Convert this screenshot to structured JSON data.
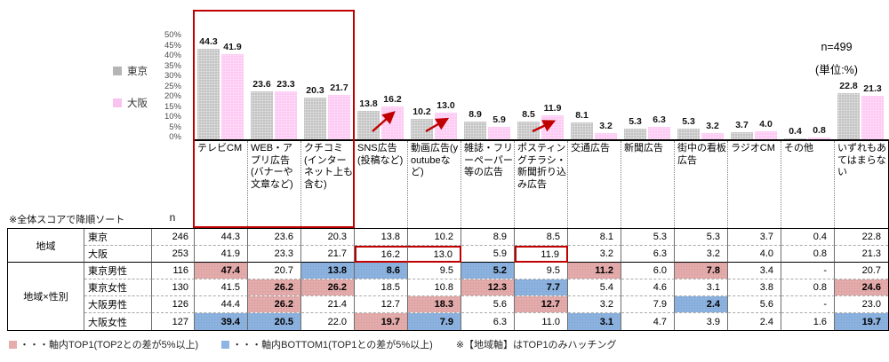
{
  "chart_data": {
    "type": "bar",
    "title": "",
    "n_label": "n=499",
    "unit_label": "(単位:%)",
    "sort_note": "※全体スコアで降順ソート",
    "ylim": [
      0,
      50
    ],
    "y_ticks": [
      "50%",
      "45%",
      "40%",
      "35%",
      "30%",
      "25%",
      "20%",
      "15%",
      "10%",
      "5%",
      "0%"
    ],
    "grid": false,
    "legend_position": "left",
    "legend": [
      {
        "name": "東京",
        "color": "#b5b5b5"
      },
      {
        "name": "大阪",
        "color": "#fac2ee"
      }
    ],
    "categories": [
      "テレビCM",
      "WEB・アプリ広告(バナーや文章など)",
      "クチコミ(インターネット上も含む)",
      "SNS広告(投稿など)",
      "動画広告(youtubeなど)",
      "雑誌・フリーペーパー等の広告",
      "ポスティングチラシ・新聞折り込み広告",
      "交通広告",
      "新聞広告",
      "街中の看板広告",
      "ラジオCM",
      "その他",
      "いずれもあてはまらない"
    ],
    "series": [
      {
        "name": "東京",
        "values": [
          44.3,
          23.6,
          20.3,
          13.8,
          10.2,
          8.9,
          8.5,
          8.1,
          5.3,
          5.3,
          3.7,
          0.4,
          22.8
        ]
      },
      {
        "name": "大阪",
        "values": [
          41.9,
          23.3,
          21.7,
          16.2,
          13.0,
          5.9,
          11.9,
          3.2,
          6.3,
          3.2,
          4.0,
          0.8,
          21.3
        ]
      }
    ],
    "increase_arrow_categories": [
      3,
      4,
      6
    ],
    "red_frame_categories": [
      0,
      1,
      2
    ],
    "bar_colors": {
      "tokyo": "#c3c3c3",
      "osaka": "#fdc9f4"
    },
    "arrow_color": "#c00000"
  },
  "table": {
    "n_header": "n",
    "groups": [
      {
        "label": "地域",
        "rows": [
          {
            "label": "東京",
            "n": "246",
            "values": [
              "44.3",
              "23.6",
              "20.3",
              "13.8",
              "10.2",
              "8.9",
              "8.5",
              "8.1",
              "5.3",
              "5.3",
              "3.7",
              "0.4",
              "22.8"
            ],
            "marks": [
              "",
              "",
              "",
              "",
              "",
              "",
              "",
              "",
              "",
              "",
              "",
              "",
              ""
            ],
            "red_segments": []
          },
          {
            "label": "大阪",
            "n": "253",
            "values": [
              "41.9",
              "23.3",
              "21.7",
              "16.2",
              "13.0",
              "5.9",
              "11.9",
              "3.2",
              "6.3",
              "3.2",
              "4.0",
              "0.8",
              "21.3"
            ],
            "marks": [
              "",
              "",
              "",
              "",
              "",
              "",
              "",
              "",
              "",
              "",
              "",
              "",
              ""
            ],
            "red_segments": [
              [
                3,
                4
              ],
              [
                6,
                6
              ]
            ]
          }
        ]
      },
      {
        "label": "地域×性別",
        "rows": [
          {
            "label": "東京男性",
            "n": "116",
            "values": [
              "47.4",
              "20.7",
              "13.8",
              "8.6",
              "9.5",
              "5.2",
              "9.5",
              "11.2",
              "6.0",
              "7.8",
              "3.4",
              "-",
              "20.7"
            ],
            "marks": [
              "p",
              "",
              "b",
              "b",
              "",
              "b",
              "",
              "p",
              "",
              "p",
              "",
              "",
              ""
            ],
            "red_segments": []
          },
          {
            "label": "東京女性",
            "n": "130",
            "values": [
              "41.5",
              "26.2",
              "26.2",
              "18.5",
              "10.8",
              "12.3",
              "7.7",
              "5.4",
              "4.6",
              "3.1",
              "3.8",
              "0.8",
              "24.6"
            ],
            "marks": [
              "",
              "p",
              "p",
              "",
              "",
              "p",
              "b",
              "",
              "",
              "",
              "",
              "",
              "p"
            ],
            "red_segments": []
          },
          {
            "label": "大阪男性",
            "n": "126",
            "values": [
              "44.4",
              "26.2",
              "21.4",
              "12.7",
              "18.3",
              "5.6",
              "12.7",
              "3.2",
              "7.9",
              "2.4",
              "5.6",
              "-",
              "23.0"
            ],
            "marks": [
              "",
              "p",
              "",
              "",
              "p",
              "",
              "p",
              "",
              "",
              "b",
              "",
              "",
              ""
            ],
            "red_segments": []
          },
          {
            "label": "大阪女性",
            "n": "127",
            "values": [
              "39.4",
              "20.5",
              "22.0",
              "19.7",
              "7.9",
              "6.3",
              "11.0",
              "3.1",
              "4.7",
              "3.9",
              "2.4",
              "1.6",
              "19.7"
            ],
            "marks": [
              "b",
              "b",
              "",
              "p",
              "b",
              "",
              "",
              "b",
              "",
              "",
              "",
              "",
              "b"
            ],
            "red_segments": []
          }
        ]
      }
    ],
    "highlight_colors": {
      "top1": "#e7adad",
      "bottom1": "#8db4e2"
    }
  },
  "footnotes": [
    {
      "swatch": "#e7adad",
      "text": "・・・軸内TOP1(TOP2との差が5%以上)"
    },
    {
      "swatch": "#8db4e2",
      "text": "・・・軸内BOTTOM1(TOP1との差が5%以上)"
    },
    {
      "swatch": "",
      "text": "※【地域軸】はTOP1のみハッチング"
    }
  ]
}
